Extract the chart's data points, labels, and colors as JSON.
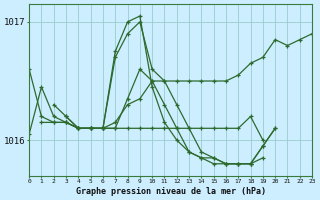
{
  "bg_color": "#cceeff",
  "grid_color": "#99cccc",
  "line_color": "#2d6a2d",
  "xlabel": "Graphe pression niveau de la mer (hPa)",
  "yticks": [
    1016,
    1017
  ],
  "ylim": [
    1015.7,
    1017.15
  ],
  "xlim": [
    0,
    23
  ],
  "series": [
    {
      "x": [
        0,
        1,
        2,
        3,
        4,
        5,
        6,
        7,
        8,
        9,
        10,
        11,
        12,
        13,
        14,
        15,
        16,
        17,
        18,
        19,
        20,
        21,
        22,
        23
      ],
      "y": [
        1016.05,
        1016.45,
        1016.2,
        1016.15,
        1016.1,
        1016.1,
        1016.1,
        1016.15,
        1016.3,
        1016.35,
        1016.5,
        1016.5,
        1016.5,
        1016.5,
        1016.5,
        1016.5,
        1016.5,
        1016.55,
        1016.65,
        1016.7,
        1016.85,
        1016.8,
        1016.85,
        1016.9
      ]
    },
    {
      "x": [
        1,
        2,
        3,
        4,
        5,
        6,
        7,
        8,
        9,
        10,
        11,
        12,
        13,
        14,
        15,
        16,
        17,
        18,
        19,
        20
      ],
      "y": [
        1016.15,
        1016.15,
        1016.15,
        1016.1,
        1016.1,
        1016.1,
        1016.75,
        1017.0,
        1017.05,
        1016.45,
        1016.15,
        1016.0,
        1015.9,
        1015.85,
        1015.8,
        1015.8,
        1015.8,
        1015.8,
        1015.95,
        1016.1
      ]
    },
    {
      "x": [
        0,
        1,
        2,
        3,
        4,
        5,
        6,
        7,
        8,
        9,
        10,
        11,
        12,
        13,
        14,
        15,
        16,
        17,
        18,
        19,
        20
      ],
      "y": [
        1016.6,
        1016.2,
        1016.15,
        1016.15,
        1016.1,
        1016.1,
        1016.1,
        1016.7,
        1016.9,
        1017.0,
        1016.6,
        1016.5,
        1016.3,
        1016.1,
        1015.9,
        1015.85,
        1015.8,
        1015.8,
        1015.8,
        1015.95,
        1016.1
      ]
    },
    {
      "x": [
        2,
        3,
        4,
        5,
        6,
        7,
        8,
        9,
        10,
        11,
        12,
        13,
        14,
        15,
        16,
        17,
        18,
        19
      ],
      "y": [
        1016.3,
        1016.2,
        1016.1,
        1016.1,
        1016.1,
        1016.1,
        1016.1,
        1016.1,
        1016.1,
        1016.1,
        1016.1,
        1016.1,
        1016.1,
        1016.1,
        1016.1,
        1016.1,
        1016.2,
        1016.0
      ]
    },
    {
      "x": [
        3,
        4,
        5,
        6,
        7,
        8,
        9,
        10,
        11,
        12,
        13,
        14,
        15,
        16,
        17,
        18,
        19
      ],
      "y": [
        1016.2,
        1016.1,
        1016.1,
        1016.1,
        1016.1,
        1016.35,
        1016.6,
        1016.5,
        1016.3,
        1016.1,
        1015.9,
        1015.85,
        1015.85,
        1015.8,
        1015.8,
        1015.8,
        1015.85
      ]
    }
  ]
}
